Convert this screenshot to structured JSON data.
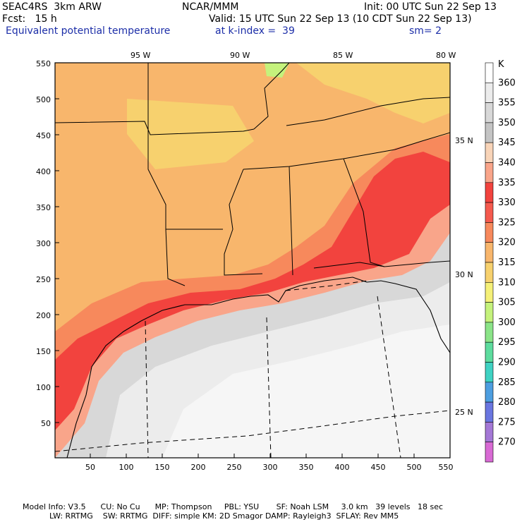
{
  "header": {
    "left1": "SEAC4RS  3km ARW",
    "center1": "NCAR/MMM",
    "right1": "Init: 00 UTC Sun 22 Sep 13",
    "left2": "Fcst:   15 h",
    "right2": "Valid: 15 UTC Sun 22 Sep 13 (10 CDT Sun 22 Sep 13)",
    "field": "Equivalent potential temperature",
    "level": "at k-index =  39",
    "smooth": "sm= 2"
  },
  "map": {
    "top_lon_labels": [
      "95 W",
      "90 W",
      "85 W",
      "80 W"
    ],
    "right_lat_labels": [
      "35 N",
      "30 N",
      "25 N"
    ],
    "x_ticks": [
      "50",
      "100",
      "150",
      "200",
      "250",
      "300",
      "350",
      "400",
      "450",
      "500",
      "550"
    ],
    "y_ticks": [
      "550",
      "500",
      "450",
      "400",
      "350",
      "300",
      "250",
      "200",
      "150",
      "100",
      "50"
    ]
  },
  "colorbar": {
    "unit": "K",
    "labels": [
      "360",
      "355",
      "350",
      "345",
      "340",
      "335",
      "330",
      "325",
      "320",
      "315",
      "310",
      "305",
      "300",
      "295",
      "290",
      "285",
      "280",
      "275",
      "270"
    ],
    "colors": [
      "#ffffff",
      "#ececec",
      "#d8d8d8",
      "#c4c4c4",
      "#f8d4b8",
      "#f9a58a",
      "#f2433e",
      "#f55a4e",
      "#f7895c",
      "#f8b66c",
      "#f7d16e",
      "#f5f078",
      "#c5f27c",
      "#8be488",
      "#5ddc9e",
      "#3fd2c3",
      "#4d9ee0",
      "#6a76e0",
      "#a478d6",
      "#d86ad4"
    ]
  },
  "footer": {
    "line1": "Model Info: V3.5      CU: No Cu      MP: Thompson     PBL: YSU       SF: Noah LSM     3.0 km   39 levels   18 sec",
    "line2": "LW: RRTMG    SW: RRTMG  DIFF: simple KM: 2D Smagor DAMP: Rayleigh3  SFLAY: Rev MM5"
  }
}
